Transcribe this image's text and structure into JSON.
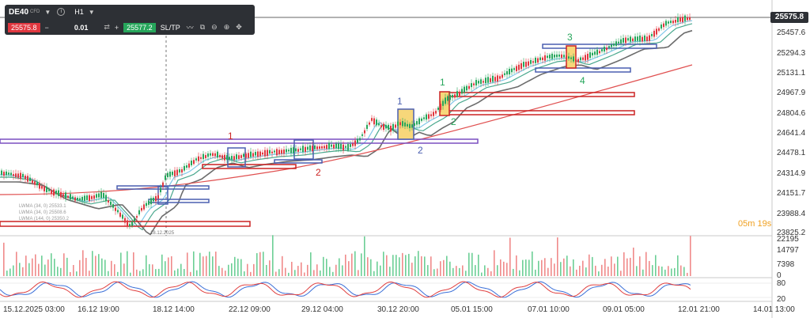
{
  "toolbar": {
    "symbol": "DE40",
    "symbol_type": "CFD",
    "timeframe": "H1",
    "sell_price": "25575.8",
    "quantity": "0.01",
    "buy_price": "25577.2",
    "sltp_label": "SL/TP"
  },
  "current_price": "25575.8",
  "countdown": "05m 19s",
  "price_axis": [
    "25457.6",
    "25294.3",
    "25131.1",
    "24967.9",
    "24804.6",
    "24641.4",
    "24478.1",
    "24314.9",
    "24151.7",
    "23988.4",
    "23825.2"
  ],
  "volume_axis": [
    "22195",
    "14797",
    "7398",
    "0"
  ],
  "osc_axis": [
    "80",
    "20"
  ],
  "time_axis": [
    "15.12.2025 03:00",
    "16.12 19:00",
    "18.12 14:00",
    "22.12 09:00",
    "29.12 04:00",
    "30.12 20:00",
    "05.01 15:00",
    "07.01 10:00",
    "09.01 05:00",
    "12.01 21:00",
    "14.01 13:00"
  ],
  "cursor_date_label": "18.12.2025",
  "annotations": {
    "red_one": "1",
    "red_two": "2",
    "blue_one": "1",
    "blue_two": "2",
    "green_one": "1",
    "green_two": "2",
    "green_three": "3",
    "blue_four": "4"
  },
  "legend": [
    "LWMA (34, 0) 25533.1",
    "LWMA (34, 0) 25508.6",
    "LWMA (144, 0) 25350.2"
  ],
  "colors": {
    "bull": "#26a65b",
    "bear": "#e0373f",
    "lwma_light": "#7fc8e8",
    "lwma_teal": "#4aa88e",
    "lwma_gray": "#6c6c6c",
    "lwma_red": "#e05050",
    "zone_red": "#cc2222",
    "zone_blue": "#4a5fb0",
    "zone_purple": "#7a4fc0",
    "highlight": "#f7d77a"
  }
}
